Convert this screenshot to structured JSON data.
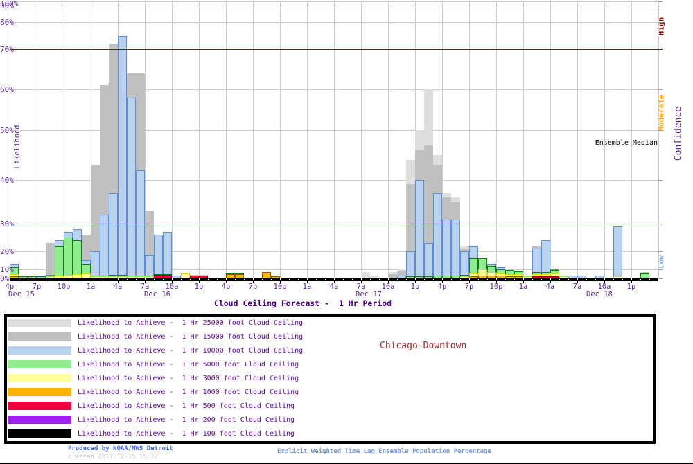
{
  "chart_data": {
    "type": "bar",
    "title": "Cloud Ceiling Forecast -  1 Hr Period",
    "ylabel": "Likelihood",
    "y2label": "Confidence",
    "y_ticks": [
      "0%",
      "10%",
      "20%",
      "30%",
      "40%",
      "50%",
      "60%",
      "70%",
      "80%",
      "90%",
      "100%"
    ],
    "y_scale": "nonlinear percent axis, compressed near 0% and 100%",
    "ylim": [
      0,
      100
    ],
    "x_tick_labels": [
      "4p",
      "7p",
      "10p",
      "1a",
      "4a",
      "7a",
      "10a",
      "1p",
      "4p",
      "7p",
      "10p",
      "1a",
      "4a",
      "7a",
      "10a",
      "1p",
      "4p",
      "7p",
      "10p",
      "1a",
      "4a",
      "7a",
      "10a",
      "1p"
    ],
    "x_date_labels": [
      "Dec 15",
      "Dec 16",
      "Dec 17",
      "Dec 18"
    ],
    "x_step_hours_per_bar": 1,
    "grid": true,
    "legend_position": "bottom box",
    "confidence_bands": [
      {
        "label": "High",
        "color": "#8B0000"
      },
      {
        "label": "Moderate",
        "color": "#FF9900"
      },
      {
        "label": "Low",
        "color": "#7FA8E8"
      }
    ],
    "reference_lines": [
      {
        "value": 70,
        "color": "#990000"
      },
      {
        "value": 30,
        "color": "#FFA500"
      }
    ],
    "annotations": {
      "ensemble_median": "Ensemble Median",
      "station": "Chicago-Downtown"
    },
    "series": [
      {
        "name": "Likelihood to Achieve -  1 Hr 25000 foot Cloud Ceiling",
        "fill": "#DEDEDE",
        "stroke": null,
        "values": [
          0,
          0,
          0,
          0,
          0,
          0,
          0,
          0,
          0,
          0,
          0,
          0,
          0,
          0,
          0,
          0,
          0,
          0,
          0,
          0,
          0,
          0,
          0,
          0,
          0,
          0,
          0,
          0,
          0,
          0,
          0,
          0,
          0,
          0,
          0,
          0,
          0,
          0,
          0,
          7,
          3,
          0,
          7,
          10,
          44,
          50,
          60,
          45,
          37,
          36,
          22,
          0,
          0,
          0,
          0,
          0,
          0,
          0,
          0,
          0,
          0,
          0,
          0,
          0,
          0,
          0,
          0,
          0,
          0,
          0,
          0,
          0
        ]
      },
      {
        "name": "Likelihood to Achieve -  1 Hr 15000 foot Cloud Ceiling",
        "fill": "#C0C0C0",
        "stroke": null,
        "values": [
          0,
          0,
          0,
          0,
          23,
          8,
          0,
          19,
          26,
          43,
          61,
          72,
          0,
          64,
          64,
          33,
          10,
          0,
          0,
          0,
          0,
          0,
          0,
          0,
          0,
          0,
          0,
          0,
          0,
          0,
          0,
          0,
          0,
          0,
          0,
          0,
          0,
          0,
          0,
          0,
          0,
          0,
          5,
          8,
          39,
          46,
          47,
          43,
          36,
          35,
          21,
          0,
          0,
          0,
          0,
          0,
          0,
          0,
          22,
          0,
          0,
          0,
          0,
          0,
          0,
          0,
          0,
          0,
          0,
          0,
          7,
          0
        ]
      },
      {
        "name": "Likelihood to Achieve -  1 Hr 10000 foot Cloud Ceiling",
        "fill": "#B8D2F0",
        "stroke": "#5B8DD9",
        "values": [
          13,
          0,
          0,
          3,
          4,
          24,
          27,
          28,
          15,
          20,
          32,
          37,
          75,
          58,
          42,
          18,
          26,
          27,
          3,
          6,
          0,
          0,
          0,
          0,
          0,
          0,
          0,
          0,
          0,
          0,
          0,
          0,
          0,
          0,
          0,
          0,
          0,
          0,
          0,
          0,
          0,
          0,
          0,
          3,
          20,
          40,
          23,
          37,
          31,
          31,
          20,
          22,
          16,
          13,
          11,
          0,
          0,
          2,
          21,
          24,
          10,
          0,
          3,
          3,
          1,
          3,
          0,
          29,
          0,
          0,
          2,
          0
        ]
      },
      {
        "name": "Likelihood to Achieve -  1 Hr 5000 foot Cloud Ceiling",
        "fill": "#90EE90",
        "stroke": "#0A800A",
        "values": [
          11,
          2,
          2,
          2,
          3,
          22,
          25,
          24,
          13,
          3,
          3,
          4,
          4,
          3,
          3,
          3,
          5,
          5,
          0,
          2,
          0,
          0,
          0,
          0,
          6,
          6,
          0,
          0,
          0,
          0,
          0,
          0,
          0,
          0,
          0,
          0,
          0,
          0,
          0,
          0,
          0,
          0,
          0,
          0,
          2,
          2,
          2,
          3,
          3,
          3,
          4,
          16,
          16,
          12,
          10,
          9,
          8,
          3,
          7,
          7,
          9,
          3,
          0,
          0,
          0,
          0,
          0,
          0,
          0,
          0,
          6,
          0
        ]
      },
      {
        "name": "Likelihood to Achieve -  1 Hr 3000 foot Cloud Ceiling",
        "fill": "#FFFF9C",
        "stroke": "#D6D600",
        "values": [
          5,
          1,
          0,
          1,
          2,
          3,
          4,
          5,
          6,
          2,
          2,
          2,
          2,
          2,
          2,
          2,
          2,
          2,
          0,
          6,
          4,
          4,
          0,
          0,
          5,
          5,
          0,
          0,
          4,
          0,
          0,
          0,
          0,
          0,
          0,
          0,
          0,
          0,
          0,
          0,
          0,
          0,
          0,
          0,
          0,
          0,
          0,
          0,
          0,
          0,
          2,
          6,
          10,
          7,
          6,
          5,
          5,
          2,
          5,
          5,
          6,
          2,
          1,
          1,
          0,
          0,
          0,
          2,
          0,
          0,
          0,
          0
        ]
      },
      {
        "name": "Likelihood to Achieve -  1 Hr 1000 foot Cloud Ceiling",
        "fill": "#FFB400",
        "stroke": "#A05000",
        "values": [
          2,
          0,
          0,
          0,
          0,
          1,
          1,
          0,
          0,
          0,
          0,
          0,
          0,
          0,
          0,
          0,
          0,
          0,
          0,
          0,
          0,
          2,
          0,
          0,
          5,
          5,
          0,
          0,
          7,
          2,
          0,
          0,
          0,
          0,
          1,
          0,
          0,
          0,
          0,
          0,
          0,
          1,
          0,
          0,
          0,
          0,
          0,
          0,
          0,
          0,
          0,
          2,
          3,
          3,
          3,
          2,
          2,
          1,
          3,
          3,
          3,
          1,
          0,
          0,
          0,
          0,
          0,
          1,
          0,
          0,
          0,
          0
        ]
      },
      {
        "name": "Likelihood to Achieve -  1 Hr 500 foot Cloud Ceiling",
        "fill": "#F00040",
        "stroke": "#900000",
        "values": [
          1,
          0,
          0,
          0,
          0,
          0,
          0,
          0,
          0,
          0,
          0,
          0,
          0,
          0,
          0,
          0,
          4,
          4,
          0,
          0,
          3,
          3,
          1,
          0,
          1,
          0,
          0,
          0,
          1,
          0,
          0,
          0,
          0,
          0,
          0,
          0,
          0,
          0,
          0,
          0,
          0,
          0,
          0,
          0,
          0,
          0,
          0,
          0,
          0,
          0,
          0,
          0,
          0,
          0,
          0,
          0,
          1,
          0,
          2,
          2,
          2,
          0,
          0,
          0,
          0,
          0,
          0,
          0,
          0,
          0,
          0,
          0
        ]
      },
      {
        "name": "Likelihood to Achieve -  1 Hr 200 foot Cloud Ceiling",
        "fill": "#A020F0",
        "stroke": null,
        "values": [
          0,
          0,
          0,
          0,
          0,
          0,
          0,
          0,
          0,
          0,
          0,
          0,
          0,
          0,
          0,
          0,
          0,
          0,
          0,
          0,
          0,
          0,
          0,
          0,
          0,
          0,
          0,
          0,
          0,
          0,
          0,
          0,
          0,
          0,
          0,
          0,
          0,
          0,
          0,
          0,
          0,
          0,
          0,
          0,
          0,
          0,
          0,
          0,
          0,
          0,
          0,
          0,
          0,
          0,
          0,
          0,
          0,
          0,
          0,
          0,
          0,
          0,
          0,
          0,
          0,
          0,
          0,
          0,
          0,
          0,
          0,
          0
        ]
      },
      {
        "name": "Likelihood to Achieve -  1 Hr 100 foot Cloud Ceiling",
        "fill": "#000000",
        "stroke": null,
        "values": [
          0,
          0,
          0,
          0,
          0,
          0,
          0,
          0,
          0,
          0,
          0,
          0,
          0,
          0,
          0,
          0,
          0,
          0,
          0,
          0,
          0,
          0,
          0,
          0,
          0,
          0,
          0,
          0,
          0,
          0,
          0,
          0,
          0,
          0,
          0,
          0,
          0,
          0,
          0,
          0,
          0,
          0,
          0,
          0,
          0,
          0,
          0,
          0,
          0,
          0,
          0,
          0,
          0,
          0,
          0,
          0,
          0,
          0,
          0,
          0,
          0,
          0,
          0,
          0,
          0,
          0,
          0,
          0,
          0,
          0,
          0,
          0
        ]
      }
    ]
  },
  "footer": {
    "produced_by": "Produced by NOAA/NWS Detroit",
    "created": "created 2017-12-15 15:27",
    "method": "Explicit Weighted Time Lag Ensemble Population Percentage"
  },
  "colors": {
    "axis_text": "#5B2D8E",
    "title": "#4B0082",
    "station": "#993333",
    "ensemble_median": "#000000",
    "grid": "#CCCCCC",
    "produced_by": "#4169E1",
    "created": "#C4C4C4",
    "method": "#7799DD"
  }
}
